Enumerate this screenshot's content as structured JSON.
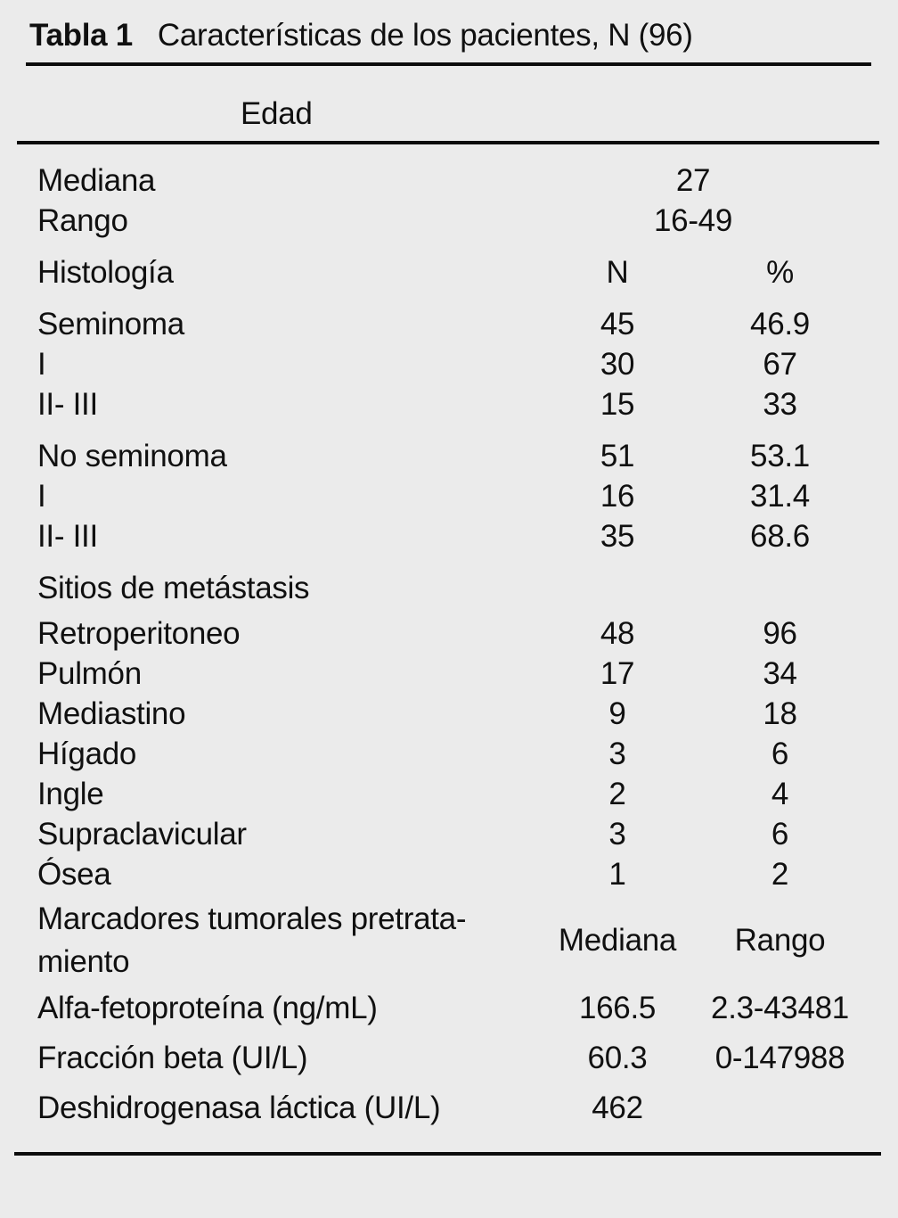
{
  "colors": {
    "background": "#ebebeb",
    "text": "#101010",
    "rule": "#0c0c0c"
  },
  "title": {
    "tag": "Tabla 1",
    "text": "Características de los pacientes, N (96)"
  },
  "subheader": "Edad",
  "rows": [
    {
      "label": "Mediana",
      "value": "27"
    },
    {
      "label": "Rango",
      "value": "16-49"
    },
    {
      "label": "Histología",
      "n": "N",
      "pct": "%"
    },
    {
      "label": "Seminoma",
      "n": "45",
      "pct": "46.9"
    },
    {
      "label": "I",
      "n": "30",
      "pct": "67"
    },
    {
      "label": "II- III",
      "n": "15",
      "pct": "33"
    },
    {
      "label": "No seminoma",
      "n": "51",
      "pct": "53.1"
    },
    {
      "label": "I",
      "n": "16",
      "pct": "31.4"
    },
    {
      "label": "II- III",
      "n": "35",
      "pct": "68.6"
    },
    {
      "label": "Sitios de metástasis"
    },
    {
      "label": "Retroperitoneo",
      "n": "48",
      "pct": "96"
    },
    {
      "label": "Pulmón",
      "n": "17",
      "pct": "34"
    },
    {
      "label": "Mediastino",
      "n": "9",
      "pct": "18"
    },
    {
      "label": "Hígado",
      "n": "3",
      "pct": "6"
    },
    {
      "label": "Ingle",
      "n": "2",
      "pct": "4"
    },
    {
      "label": "Supraclavicular",
      "n": "3",
      "pct": "6"
    },
    {
      "label": "Ósea",
      "n": "1",
      "pct": "2"
    },
    {
      "label_line1": "Marcadores tumorales pretrata-",
      "label_line2": "miento",
      "n": "Mediana",
      "pct": "Rango"
    },
    {
      "label": "Alfa-fetoproteína (ng/mL)",
      "n": "166.5",
      "pct": "2.3-43481"
    },
    {
      "label": "Fracción beta (UI/L)",
      "n": "60.3",
      "pct": "0-147988"
    },
    {
      "label": "Deshidrogenasa láctica (UI/L)",
      "n": "462",
      "pct": ""
    }
  ]
}
